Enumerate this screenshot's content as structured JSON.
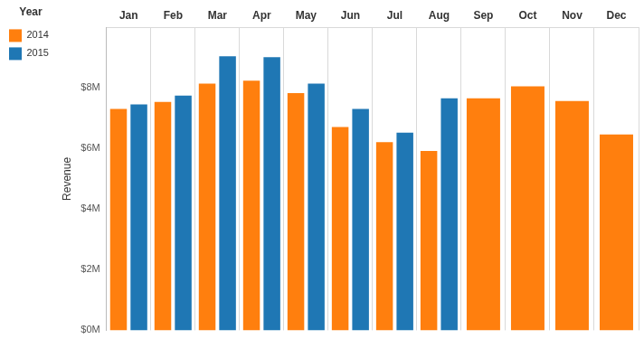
{
  "chart_data": {
    "type": "bar",
    "y_label": "Revenue",
    "legend_title": "Year",
    "categories": [
      "Jan",
      "Feb",
      "Mar",
      "Apr",
      "May",
      "Jun",
      "Jul",
      "Aug",
      "Sep",
      "Oct",
      "Nov",
      "Dec"
    ],
    "series": [
      {
        "name": "2014",
        "color": "#ff7f0e",
        "values": [
          7.31,
          7.54,
          8.15,
          8.24,
          7.83,
          6.71,
          6.21,
          5.92,
          7.66,
          8.06,
          7.57,
          6.47
        ]
      },
      {
        "name": "2015",
        "color": "#1f77b4",
        "values": [
          7.46,
          7.75,
          9.05,
          9.02,
          8.15,
          7.31,
          6.53,
          7.66,
          null,
          null,
          null,
          null
        ]
      }
    ],
    "ylim": [
      0,
      10
    ],
    "yticks": [
      {
        "value": 0,
        "label": "$0M"
      },
      {
        "value": 2,
        "label": "$2M"
      },
      {
        "value": 4,
        "label": "$4M"
      },
      {
        "value": 6,
        "label": "$6M"
      },
      {
        "value": 8,
        "label": "$8M"
      }
    ],
    "grid": true,
    "legend": "top-left"
  }
}
